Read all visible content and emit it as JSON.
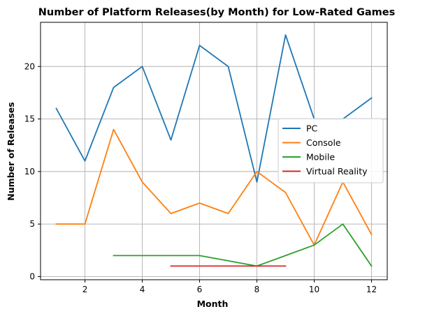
{
  "chart_data": {
    "type": "line",
    "title": "Number of Platform Releases(by Month) for Low-Rated Games",
    "xlabel": "Month",
    "ylabel": "Number of Releases",
    "xlim": [
      0.45,
      12.55
    ],
    "ylim": [
      -0.3,
      24.2
    ],
    "xticks": [
      2,
      4,
      6,
      8,
      10,
      12
    ],
    "yticks": [
      0,
      5,
      10,
      15,
      20
    ],
    "grid": true,
    "legend_position": "center-right",
    "series": [
      {
        "name": "PC",
        "color": "#1f77b4",
        "x": [
          1,
          2,
          3,
          4,
          5,
          6,
          7,
          8,
          9,
          10,
          11,
          12
        ],
        "y": [
          16,
          11,
          18,
          20,
          13,
          22,
          20,
          9,
          23,
          15,
          15,
          17
        ]
      },
      {
        "name": "Console",
        "color": "#ff7f0e",
        "x": [
          1,
          2,
          3,
          4,
          5,
          6,
          7,
          8,
          9,
          10,
          11,
          12
        ],
        "y": [
          5,
          5,
          14,
          9,
          6,
          7,
          6,
          10,
          8,
          3,
          9,
          4
        ]
      },
      {
        "name": "Mobile",
        "color": "#2ca02c",
        "x": [
          3,
          4,
          5,
          6,
          7,
          8,
          9,
          10,
          11,
          12
        ],
        "y": [
          2,
          2,
          2,
          2,
          1.5,
          1,
          2,
          3,
          5,
          1
        ]
      },
      {
        "name": "Virtual Reality",
        "color": "#d62728",
        "x": [
          5,
          6,
          7,
          8,
          9
        ],
        "y": [
          1,
          1,
          1,
          1,
          1
        ]
      }
    ]
  }
}
